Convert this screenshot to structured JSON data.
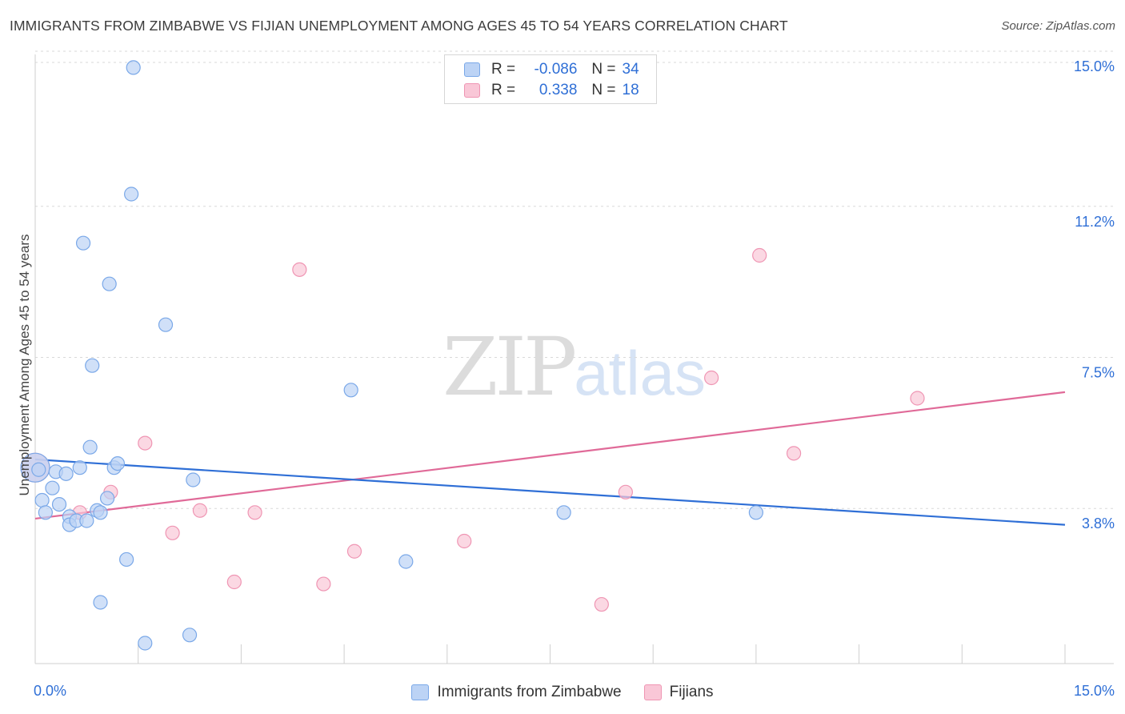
{
  "title": "IMMIGRANTS FROM ZIMBABWE VS FIJIAN UNEMPLOYMENT AMONG AGES 45 TO 54 YEARS CORRELATION CHART",
  "source": "Source: ZipAtlas.com",
  "watermark": {
    "zip": "ZIP",
    "atlas": "atlas"
  },
  "legend": {
    "rows": [
      {
        "r_label": "R =",
        "r_value": "-0.086",
        "n_label": "N =",
        "n_value": "34"
      },
      {
        "r_label": "R =",
        "r_value": "0.338",
        "n_label": "N =",
        "n_value": "18"
      }
    ]
  },
  "bottom_legend": {
    "items": [
      "Immigrants from Zimbabwe",
      "Fijians"
    ]
  },
  "colors": {
    "blue_fill": "#bcd3f5",
    "blue_stroke": "#7aa8e8",
    "blue_line": "#2f6fd6",
    "pink_fill": "#f9c7d7",
    "pink_stroke": "#ef95b3",
    "pink_line": "#e06a98",
    "tick_label": "#2f6fd6",
    "grid": "#d9d9d9"
  },
  "chart_data": {
    "type": "scatter",
    "title": "IMMIGRANTS FROM ZIMBABWE VS FIJIAN UNEMPLOYMENT AMONG AGES 45 TO 54 YEARS CORRELATION CHART",
    "xlabel": "",
    "ylabel": "Unemployment Among Ages 45 to 54 years",
    "xlim": [
      0,
      15
    ],
    "ylim": [
      0,
      15.4
    ],
    "x_tick_labels": [
      {
        "value": 0,
        "label": "0.0%"
      },
      {
        "value": 15,
        "label": "15.0%"
      }
    ],
    "y_tick_labels": [
      {
        "value": 3.8,
        "label": "3.8%"
      },
      {
        "value": 7.5,
        "label": "7.5%"
      },
      {
        "value": 11.2,
        "label": "11.2%"
      },
      {
        "value": 15.0,
        "label": "15.0%"
      }
    ],
    "grid": "horizontal dashed",
    "legend_position": "top-center",
    "series": [
      {
        "name": "Immigrants from Zimbabwe",
        "r": -0.086,
        "n": 34,
        "trend": {
          "x": [
            0,
            15
          ],
          "y": [
            5.0,
            3.4
          ]
        },
        "points": [
          {
            "x": 0.0,
            "y": 4.8,
            "size": "large"
          },
          {
            "x": 0.1,
            "y": 4.0
          },
          {
            "x": 0.15,
            "y": 3.7
          },
          {
            "x": 0.25,
            "y": 4.3
          },
          {
            "x": 0.3,
            "y": 4.7
          },
          {
            "x": 0.35,
            "y": 3.9
          },
          {
            "x": 0.45,
            "y": 4.65
          },
          {
            "x": 0.5,
            "y": 3.6
          },
          {
            "x": 0.5,
            "y": 3.4
          },
          {
            "x": 0.6,
            "y": 3.5
          },
          {
            "x": 0.65,
            "y": 4.8
          },
          {
            "x": 0.7,
            "y": 10.3
          },
          {
            "x": 0.75,
            "y": 3.5
          },
          {
            "x": 0.8,
            "y": 5.3
          },
          {
            "x": 0.83,
            "y": 7.3
          },
          {
            "x": 0.9,
            "y": 3.75
          },
          {
            "x": 0.95,
            "y": 3.7
          },
          {
            "x": 0.95,
            "y": 1.5
          },
          {
            "x": 1.05,
            "y": 4.05
          },
          {
            "x": 1.08,
            "y": 9.3
          },
          {
            "x": 1.15,
            "y": 4.8
          },
          {
            "x": 1.2,
            "y": 4.9
          },
          {
            "x": 1.33,
            "y": 2.55
          },
          {
            "x": 1.4,
            "y": 11.5
          },
          {
            "x": 1.43,
            "y": 14.6
          },
          {
            "x": 1.6,
            "y": 0.5
          },
          {
            "x": 1.9,
            "y": 8.3
          },
          {
            "x": 2.25,
            "y": 0.7
          },
          {
            "x": 2.3,
            "y": 4.5
          },
          {
            "x": 4.6,
            "y": 6.7
          },
          {
            "x": 5.4,
            "y": 2.5
          },
          {
            "x": 7.7,
            "y": 3.7
          },
          {
            "x": 10.5,
            "y": 3.7
          },
          {
            "x": 0.05,
            "y": 4.75
          }
        ]
      },
      {
        "name": "Fijians",
        "r": 0.338,
        "n": 18,
        "trend": {
          "x": [
            0,
            15
          ],
          "y": [
            3.55,
            6.65
          ]
        },
        "points": [
          {
            "x": 0.0,
            "y": 4.8,
            "size": "large"
          },
          {
            "x": 0.65,
            "y": 3.7
          },
          {
            "x": 1.1,
            "y": 4.2
          },
          {
            "x": 1.6,
            "y": 5.4
          },
          {
            "x": 2.0,
            "y": 3.2
          },
          {
            "x": 2.4,
            "y": 3.75
          },
          {
            "x": 2.9,
            "y": 2.0
          },
          {
            "x": 3.2,
            "y": 3.7
          },
          {
            "x": 3.85,
            "y": 9.65
          },
          {
            "x": 4.2,
            "y": 1.95
          },
          {
            "x": 4.65,
            "y": 2.75
          },
          {
            "x": 6.25,
            "y": 3.0
          },
          {
            "x": 8.25,
            "y": 1.45
          },
          {
            "x": 8.6,
            "y": 4.2
          },
          {
            "x": 9.85,
            "y": 7.0
          },
          {
            "x": 10.55,
            "y": 10.0
          },
          {
            "x": 11.05,
            "y": 5.15
          },
          {
            "x": 12.85,
            "y": 6.5
          }
        ]
      }
    ]
  }
}
